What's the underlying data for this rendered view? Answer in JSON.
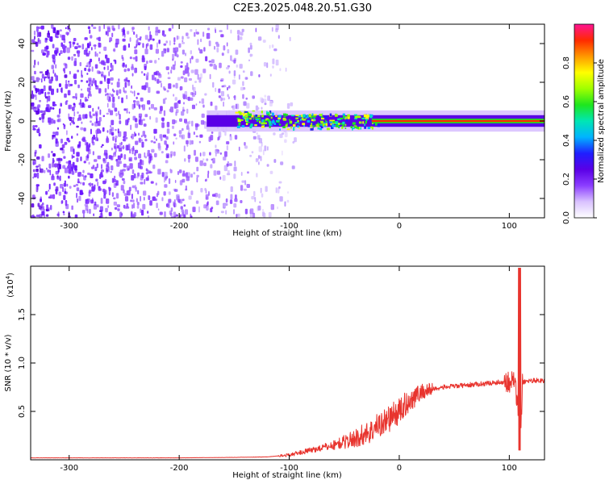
{
  "title": "C2E3.2025.048.20.51.G30",
  "chart_data": [
    {
      "type": "heatmap",
      "title": "C2E3.2025.048.20.51.G30",
      "xlabel": "Height of straight line (km)",
      "ylabel": "Frequency (Hz)",
      "xlim": [
        -335,
        132
      ],
      "ylim": [
        -50,
        50
      ],
      "xticks": [
        -300,
        -200,
        -100,
        0,
        100
      ],
      "yticks": [
        -40,
        -20,
        0,
        20,
        40
      ],
      "colorbar": {
        "label": "Normalized spectral amplitude",
        "range": [
          0,
          1
        ],
        "ticks": [
          0.0,
          0.2,
          0.4,
          0.6,
          0.8
        ],
        "tick_labels": [
          "0.0",
          "0.2",
          "0.4",
          "0.6",
          "0.8"
        ],
        "colors": [
          "#ffffff",
          "#d9c2ff",
          "#8b3dff",
          "#5a00e6",
          "#1f1fff",
          "#00b4ff",
          "#00e6b4",
          "#1ee61e",
          "#a0ff00",
          "#ffff00",
          "#ff9900",
          "#ff2a00",
          "#ff1493"
        ]
      },
      "features": {
        "noise_region_x": [
          -335,
          -95
        ],
        "signal_band_start_x": -175,
        "signal_band_center_hz": 0,
        "signal_band_halfwidth_hz": 3,
        "strong_signal_from_x": -25
      },
      "grid": false
    },
    {
      "type": "line",
      "xlabel": "Height of straight line (km)",
      "ylabel": "SNR (10 * v/v)",
      "multiplier": "(x10^4)",
      "xlim": [
        -335,
        132
      ],
      "ylim": [
        0,
        2.0
      ],
      "xticks": [
        -300,
        -200,
        -100,
        0,
        100
      ],
      "yticks": [
        0.5,
        1.0,
        1.5
      ],
      "ytick_labels": [
        "0.5",
        "1.0",
        "1.5"
      ],
      "series": [
        {
          "color": "#e8342e",
          "x": [
            -335,
            -300,
            -250,
            -200,
            -150,
            -120,
            -100,
            -80,
            -60,
            -40,
            -25,
            -20,
            -10,
            0,
            10,
            20,
            30,
            40,
            50,
            60,
            70,
            80,
            90,
            100,
            105,
            108,
            110,
            112,
            115,
            120,
            132
          ],
          "y": [
            0.02,
            0.02,
            0.02,
            0.02,
            0.025,
            0.03,
            0.05,
            0.1,
            0.15,
            0.22,
            0.3,
            0.35,
            0.42,
            0.5,
            0.62,
            0.7,
            0.73,
            0.75,
            0.76,
            0.77,
            0.78,
            0.79,
            0.8,
            0.81,
            0.82,
            0.5,
            0.09,
            0.8,
            0.81,
            0.82,
            0.82
          ]
        }
      ],
      "grid": false
    }
  ]
}
